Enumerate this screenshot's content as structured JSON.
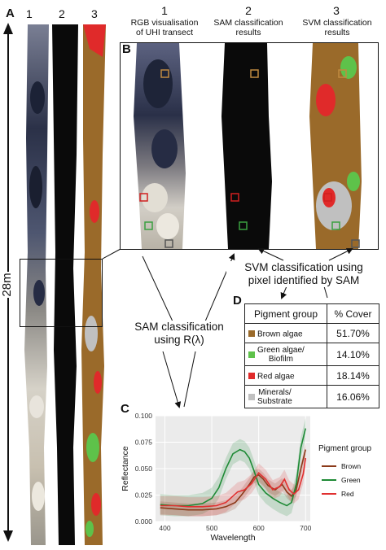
{
  "panels": {
    "a": "A",
    "b": "B",
    "c": "C",
    "d": "D"
  },
  "strip_numbers": [
    "1",
    "2",
    "3"
  ],
  "scale_label": "28m",
  "panel_b": {
    "col1": {
      "num": "1",
      "caption_l1": "RGB visualisation",
      "caption_l2": "of UHI transect"
    },
    "col2": {
      "num": "2",
      "caption_l1": "SAM classification",
      "caption_l2": "results"
    },
    "col3": {
      "num": "3",
      "caption_l1": "SVM classification",
      "caption_l2": "results"
    }
  },
  "annotations": {
    "svm_l1": "SVM classification using",
    "svm_l2": "pixel identified by SAM",
    "sam_l1": "SAM classification",
    "sam_l2": "using R(λ)"
  },
  "pigment_table": {
    "header_group": "Pigment group",
    "header_cover": "% Cover",
    "rows": [
      {
        "name_l1": "Brown algae",
        "name_l2": "",
        "cover": "51.70%",
        "color": "#9a6a2a"
      },
      {
        "name_l1": "Green algae/",
        "name_l2": "Biofilm",
        "cover": "14.10%",
        "color": "#5ec24a"
      },
      {
        "name_l1": "Red algae",
        "name_l2": "",
        "cover": "18.14%",
        "color": "#e02a2a"
      },
      {
        "name_l1": "Minerals/",
        "name_l2": "Substrate",
        "cover": "16.06%",
        "color": "#c0c0c0"
      }
    ]
  },
  "chart_data": {
    "type": "line",
    "xlabel": "Wavelength",
    "ylabel": "Reflectance",
    "xlim": [
      380,
      710
    ],
    "ylim": [
      0,
      0.1
    ],
    "xticks": [
      400,
      500,
      600,
      700
    ],
    "yticks": [
      0.0,
      0.025,
      0.05,
      0.075,
      0.1
    ],
    "ytick_labels": [
      "0.000",
      "0.025",
      "0.050",
      "0.075",
      "0.100"
    ],
    "legend_title": "Pigment group",
    "legend_position": "right",
    "series": [
      {
        "name": "Brown",
        "color": "#8b3a1a",
        "x": [
          390,
          420,
          450,
          480,
          510,
          530,
          550,
          565,
          580,
          590,
          600,
          610,
          620,
          635,
          650,
          660,
          670,
          680,
          690,
          700
        ],
        "y": [
          0.013,
          0.012,
          0.011,
          0.011,
          0.012,
          0.014,
          0.018,
          0.026,
          0.035,
          0.042,
          0.044,
          0.04,
          0.034,
          0.03,
          0.035,
          0.028,
          0.024,
          0.03,
          0.05,
          0.068
        ],
        "band": 0.006
      },
      {
        "name": "Green",
        "color": "#1e8a35",
        "x": [
          390,
          420,
          450,
          480,
          500,
          515,
          530,
          545,
          560,
          570,
          580,
          590,
          600,
          615,
          630,
          645,
          660,
          670,
          680,
          690,
          700
        ],
        "y": [
          0.016,
          0.015,
          0.015,
          0.017,
          0.022,
          0.032,
          0.05,
          0.064,
          0.068,
          0.066,
          0.06,
          0.048,
          0.035,
          0.027,
          0.022,
          0.018,
          0.015,
          0.018,
          0.035,
          0.07,
          0.088
        ],
        "band": 0.01
      },
      {
        "name": "Red",
        "color": "#e03030",
        "x": [
          390,
          420,
          450,
          480,
          510,
          530,
          545,
          555,
          570,
          585,
          600,
          615,
          630,
          645,
          655,
          665,
          675,
          685,
          695,
          700
        ],
        "y": [
          0.015,
          0.015,
          0.014,
          0.014,
          0.015,
          0.018,
          0.024,
          0.028,
          0.03,
          0.036,
          0.046,
          0.04,
          0.03,
          0.033,
          0.04,
          0.03,
          0.026,
          0.03,
          0.045,
          0.06
        ],
        "band": 0.009
      }
    ]
  },
  "colors": {
    "brown": "#9a6a2a",
    "green": "#5ec24a",
    "red": "#e02a2a",
    "substrate": "#c0c0c0",
    "dark": "#0a0a0a"
  }
}
